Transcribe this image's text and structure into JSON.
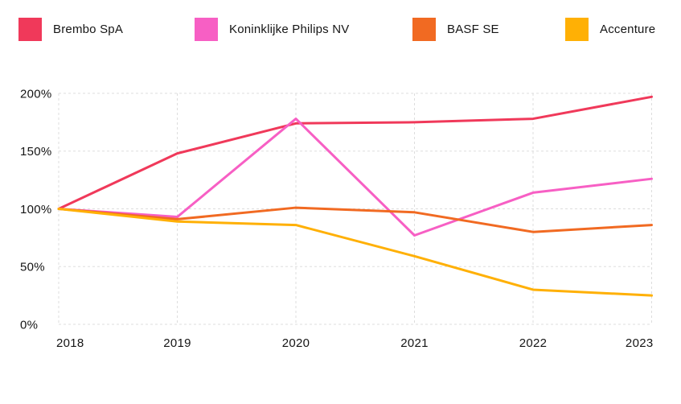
{
  "legend": {
    "items": [
      {
        "label": "Brembo SpA",
        "color": "#F0395A"
      },
      {
        "label": "Koninklijke Philips NV",
        "color": "#F75FC4"
      },
      {
        "label": "BASF SE",
        "color": "#F16A22"
      },
      {
        "label": "Accenture",
        "color": "#FFB005"
      }
    ]
  },
  "chart_data": {
    "type": "line",
    "title": "",
    "xlabel": "",
    "ylabel": "",
    "x": [
      "2018",
      "2019",
      "2020",
      "2021",
      "2022",
      "2023"
    ],
    "series": [
      {
        "name": "Brembo SpA",
        "color": "#F0395A",
        "values": [
          100,
          148,
          174,
          175,
          178,
          197
        ]
      },
      {
        "name": "Koninklijke Philips NV",
        "color": "#F75FC4",
        "values": [
          100,
          93,
          178,
          77,
          114,
          126
        ]
      },
      {
        "name": "BASF SE",
        "color": "#F16A22",
        "values": [
          100,
          91,
          101,
          97,
          80,
          86
        ]
      },
      {
        "name": "Accenture",
        "color": "#FFB005",
        "values": [
          100,
          89,
          86,
          59,
          30,
          25
        ]
      }
    ],
    "yticks": [
      0,
      50,
      100,
      150,
      200
    ],
    "ytick_labels": [
      "0%",
      "50%",
      "100%",
      "150%",
      "200%"
    ],
    "ylim": [
      0,
      200
    ],
    "grid": true,
    "grid_style": "dashed",
    "legend_position": "top"
  }
}
